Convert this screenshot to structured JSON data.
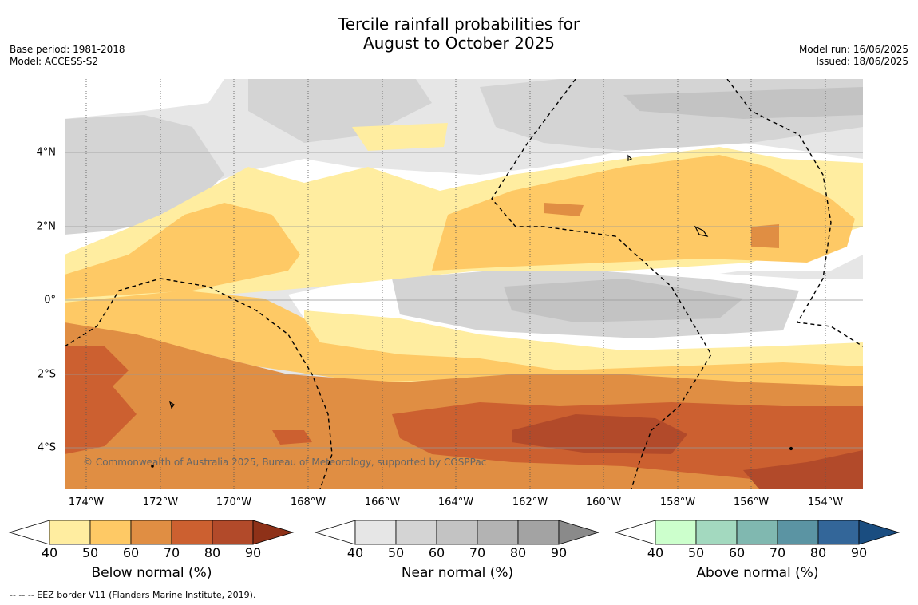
{
  "title_line1": "Tercile rainfall probabilities for",
  "title_line2": "August to October 2025",
  "meta_left": {
    "base_period": "Base period: 1981-2018",
    "model": "Model: ACCESS-S2"
  },
  "meta_right": {
    "model_run": "Model run: 16/06/2025",
    "issued": "Issued: 18/06/2025"
  },
  "map": {
    "lat_labels": [
      "4°N",
      "2°N",
      "0°",
      "2°S",
      "4°S"
    ],
    "lon_labels": [
      "174°W",
      "172°W",
      "170°W",
      "168°W",
      "166°W",
      "164°W",
      "162°W",
      "160°W",
      "158°W",
      "156°W",
      "154°W"
    ],
    "copyright": "© Commonwealth of Australia 2025, Bureau of Meteorology, supported by COSPPac"
  },
  "colorbars": [
    {
      "label": "Below normal (%)",
      "colors": [
        "#ffffff",
        "#ffeda0",
        "#fec965",
        "#e08e43",
        "#cc6030",
        "#b24a2a",
        "#8e3118"
      ]
    },
    {
      "label": "Near normal (%)",
      "colors": [
        "#ffffff",
        "#e6e6e6",
        "#d4d4d4",
        "#c3c3c3",
        "#b3b3b3",
        "#a3a3a3",
        "#8a8a8a"
      ]
    },
    {
      "label": "Above normal (%)",
      "colors": [
        "#ffffff",
        "#ccffcc",
        "#a3d9bf",
        "#80b8b0",
        "#5b94a3",
        "#336699",
        "#1a4d80"
      ]
    }
  ],
  "colorbar_ticks": [
    "40",
    "50",
    "60",
    "70",
    "80",
    "90"
  ],
  "footer": "--  --  -- EEZ border V11 (Flanders Marine Institute, 2019)."
}
